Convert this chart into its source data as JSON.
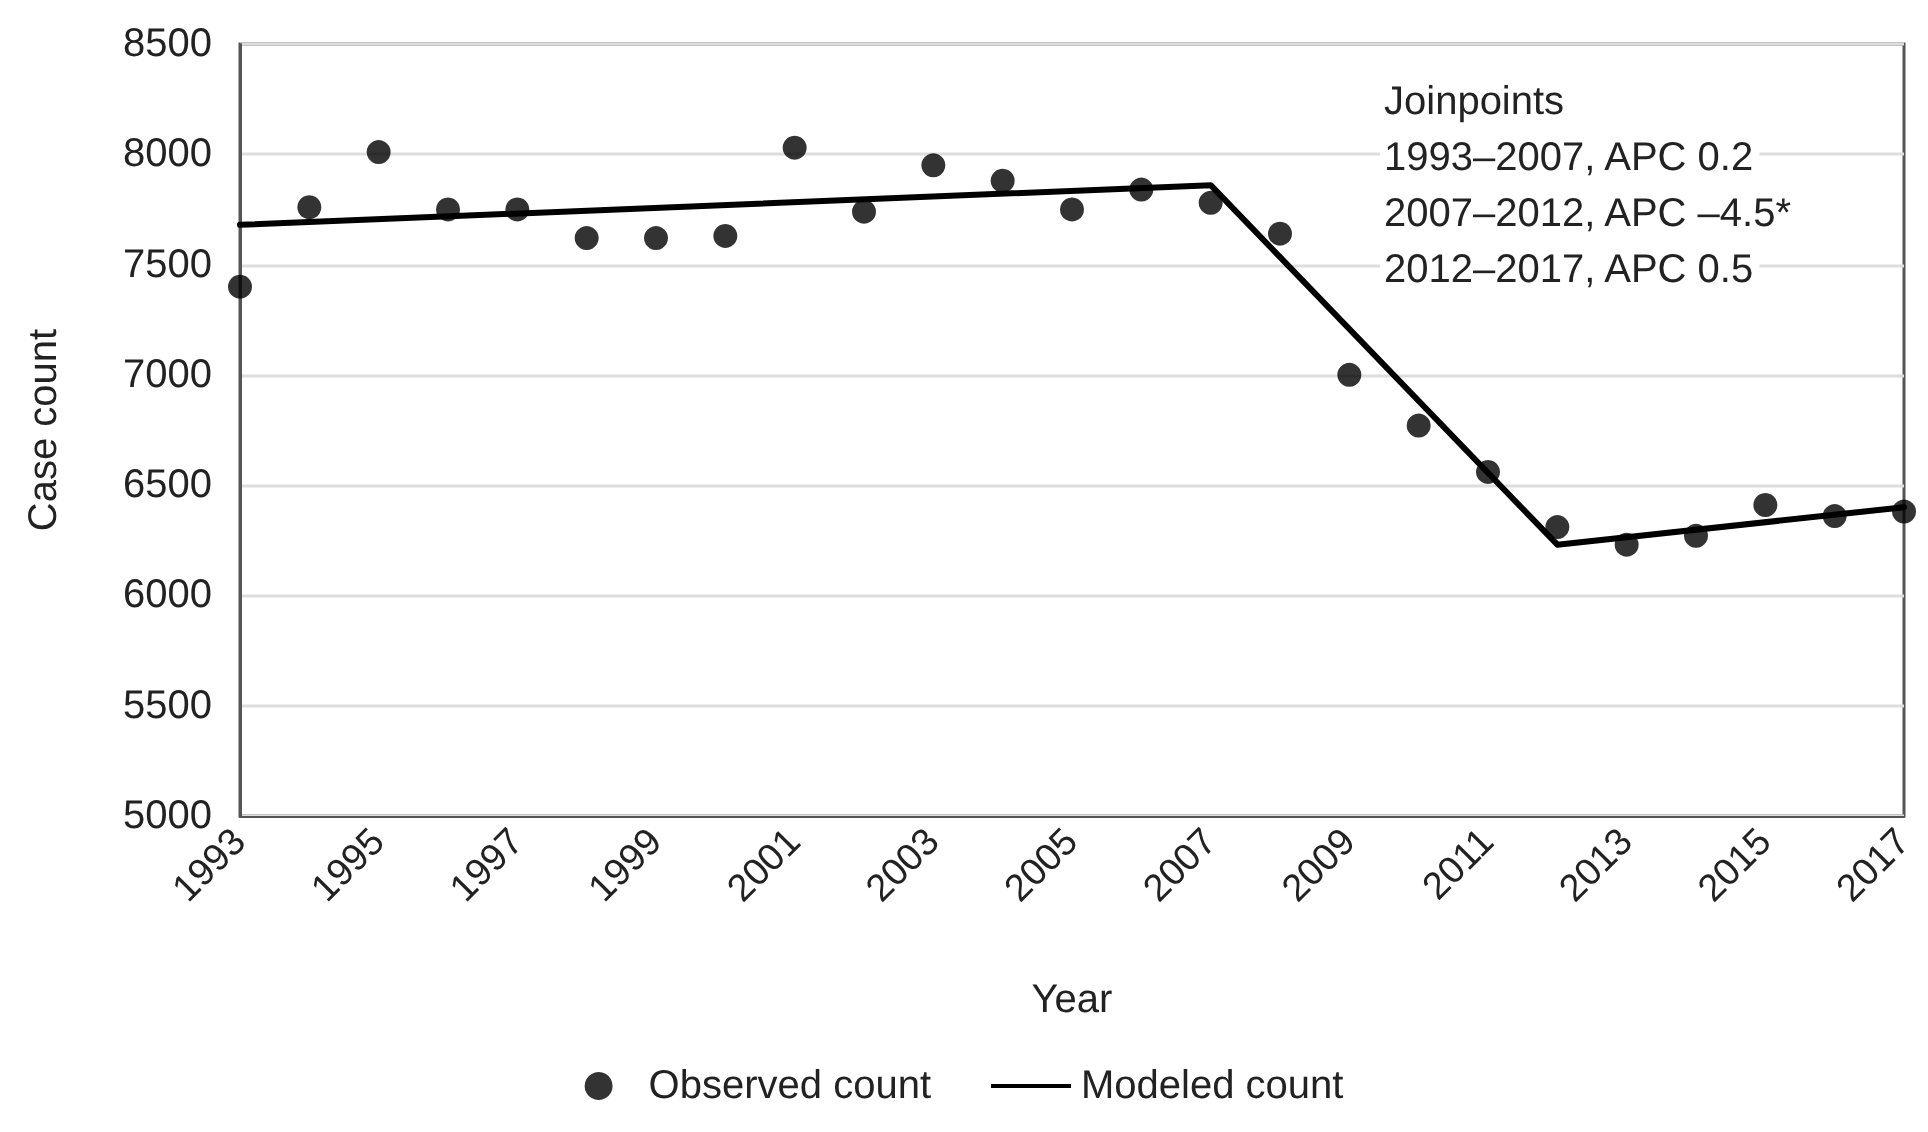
{
  "chart_data": {
    "type": "scatter",
    "xlabel": "Year",
    "ylabel": "Case count",
    "xlim": [
      1993,
      2017
    ],
    "xticks": [
      1993,
      1995,
      1997,
      1999,
      2001,
      2003,
      2005,
      2007,
      2009,
      2011,
      2013,
      2015,
      2017
    ],
    "ylim": [
      5000,
      8500
    ],
    "yticks": [
      5000,
      5500,
      6000,
      6500,
      7000,
      7500,
      8000,
      8500
    ],
    "grid": "y",
    "legend": "bottom",
    "marker": "circle",
    "x": [
      1993,
      1994,
      1995,
      1996,
      1997,
      1998,
      1999,
      2000,
      2001,
      2002,
      2003,
      2004,
      2005,
      2006,
      2007,
      2008,
      2009,
      2010,
      2011,
      2012,
      2013,
      2014,
      2015,
      2016,
      2017
    ],
    "series": [
      {
        "name": "Observed count",
        "color": "#000000",
        "values": [
          7400,
          7760,
          8010,
          7750,
          7750,
          7620,
          7620,
          7630,
          8030,
          7740,
          7950,
          7880,
          7750,
          7840,
          7780,
          7640,
          7000,
          6770,
          6560,
          6310,
          6230,
          6270,
          6410,
          6360,
          6380
        ]
      },
      {
        "name": "Modeled count",
        "type": "line",
        "color": "#000000",
        "line_style": "solid",
        "marker": "none",
        "x": [
          1993,
          2007,
          2012,
          2017
        ],
        "values": [
          7680,
          7860,
          6230,
          6400
        ]
      }
    ],
    "annotations": [
      "Joinpoints",
      "1993–2007, APC 0.2",
      "2007–2012, APC –4.5*",
      "2012–2017, APC 0.5"
    ]
  }
}
